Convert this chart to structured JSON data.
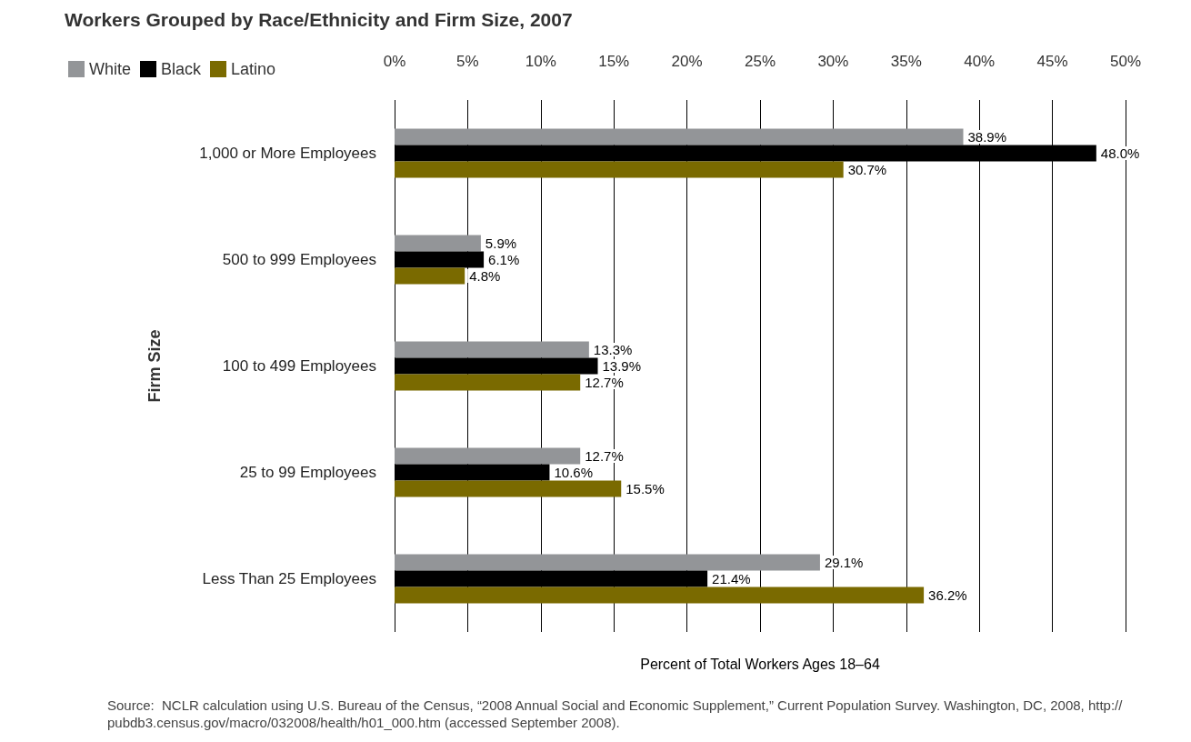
{
  "chart_data": {
    "type": "bar",
    "orientation": "horizontal",
    "title": "Workers Grouped by Race/Ethnicity and Firm Size, 2007",
    "categories": [
      "1,000 or More Employees",
      "500 to 999 Employees",
      "100 to 499 Employees",
      "25 to 99 Employees",
      "Less Than 25 Employees"
    ],
    "series": [
      {
        "name": "White",
        "color": "#939598",
        "values": [
          38.9,
          5.9,
          13.3,
          12.7,
          29.1
        ],
        "value_labels": [
          "38.9%",
          "5.9%",
          "13.3%",
          "12.7%",
          "29.1%"
        ]
      },
      {
        "name": "Black",
        "color": "#000000",
        "values": [
          48.0,
          6.1,
          13.9,
          10.6,
          21.4
        ],
        "value_labels": [
          "48.0%",
          "6.1%",
          "13.9%",
          "10.6%",
          "21.4%"
        ]
      },
      {
        "name": "Latino",
        "color": "#7a6a00",
        "values": [
          30.7,
          4.8,
          12.7,
          15.5,
          36.2
        ],
        "value_labels": [
          "30.7%",
          "4.8%",
          "12.7%",
          "15.5%",
          "36.2%"
        ]
      }
    ],
    "xlim": [
      0,
      50
    ],
    "xticks": [
      {
        "value": 0,
        "label": "0%"
      },
      {
        "value": 5,
        "label": "5%"
      },
      {
        "value": 10,
        "label": "10%"
      },
      {
        "value": 15,
        "label": "15%"
      },
      {
        "value": 20,
        "label": "20%"
      },
      {
        "value": 25,
        "label": "25%"
      },
      {
        "value": 30,
        "label": "30%"
      },
      {
        "value": 35,
        "label": "35%"
      },
      {
        "value": 40,
        "label": "40%"
      },
      {
        "value": 45,
        "label": "45%"
      },
      {
        "value": 50,
        "label": "50%"
      }
    ],
    "xlabel": "Percent of Total Workers Ages 18–64",
    "ylabel": "Firm Size",
    "grid": "x",
    "legend": "top left",
    "annotations": [
      "Source:  NCLR calculation using U.S. Bureau of the Census, “2008 Annual Social and Economic Supplement,” Current Population Survey. Washington, DC, 2008, http://pubdb3.census.gov/macro/032008/health/h01_000.htm (accessed September 2008)."
    ]
  }
}
